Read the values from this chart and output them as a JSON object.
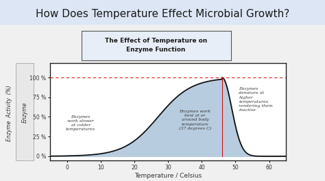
{
  "title_main": "How Does Temperature Effect Microbial Growth?",
  "chart_title": "The Effect of Temperature on\nEnzyme Function",
  "xlabel": "Temperature / Celsius",
  "ylabel_line1": "Enzyme",
  "ylabel_line2": "Activity (%)",
  "ylabel_rotated": "Enzyme  Activity  (%)",
  "bg_color_banner": "#dce6f5",
  "bg_color_lower": "#f0f0f0",
  "bg_color_chart": "#ffffff",
  "bg_color_title_box": "#e8eef8",
  "fill_color": "#b8ccdf",
  "curve_color": "#111111",
  "dashed_color": "#dd2222",
  "vline_color": "#cc1111",
  "peak_temp": 46,
  "yticks": [
    0,
    25,
    50,
    75,
    100
  ],
  "ytick_labels": [
    "0 %",
    "25 %",
    "50 %",
    "75 %",
    "100 %"
  ],
  "xticks": [
    0,
    10,
    20,
    30,
    40,
    50,
    60
  ],
  "xlim": [
    -5,
    65
  ],
  "ylim": [
    -5,
    118
  ],
  "ann1_text": "Enzymes\nwork slower\nat colder\ntemperatures",
  "ann1_x": 4,
  "ann1_y": 42,
  "ann2_text": "Enzymes work\nbest at or\naround body\ntemperature\n(37 degrees C)",
  "ann2_x": 38,
  "ann2_y": 46,
  "ann3_text": "Enzymes\ndenature at\nhigher\ntemperatures\nrendering them\ninactive",
  "ann3_x": 51,
  "ann3_y": 72,
  "title_fontsize": 11,
  "chart_title_fontsize": 6.5,
  "annotation_fontsize": 4.5,
  "tick_fontsize": 5.5
}
